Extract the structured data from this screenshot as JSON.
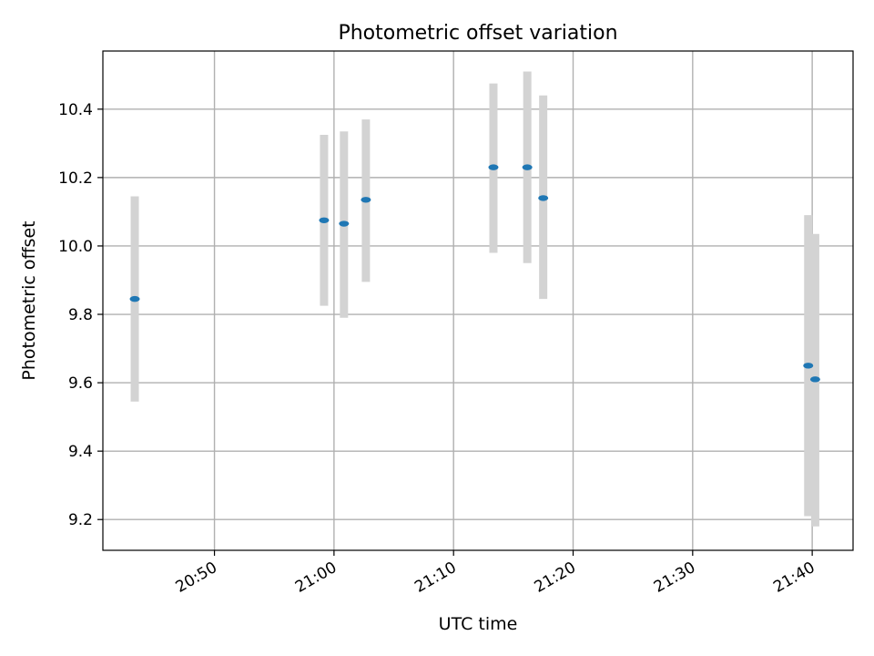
{
  "chart_data": {
    "type": "scatter",
    "title": "Photometric offset variation",
    "xlabel": "UTC time",
    "ylabel": "Photometric offset",
    "x_unit": "UTC clock time (HH:MM)",
    "xlim": [
      "20:40:40",
      "21:43:25"
    ],
    "ylim": [
      9.11,
      10.57
    ],
    "grid": true,
    "x_ticks": [
      "20:50",
      "21:00",
      "21:10",
      "21:20",
      "21:30",
      "21:40"
    ],
    "y_ticks": [
      9.2,
      9.4,
      9.6,
      9.8,
      10.0,
      10.2,
      10.4
    ],
    "point_color": "#1f77b4",
    "errorbar_color": "#d3d3d3",
    "points": [
      {
        "x": "20:43:20",
        "y": 9.845,
        "yerr_low": 9.545,
        "yerr_high": 10.145
      },
      {
        "x": "20:59:10",
        "y": 10.075,
        "yerr_low": 9.825,
        "yerr_high": 10.325
      },
      {
        "x": "21:00:50",
        "y": 10.065,
        "yerr_low": 9.79,
        "yerr_high": 10.335
      },
      {
        "x": "21:02:40",
        "y": 10.135,
        "yerr_low": 9.895,
        "yerr_high": 10.37
      },
      {
        "x": "21:13:20",
        "y": 10.23,
        "yerr_low": 9.98,
        "yerr_high": 10.475
      },
      {
        "x": "21:16:10",
        "y": 10.23,
        "yerr_low": 9.95,
        "yerr_high": 10.51
      },
      {
        "x": "21:17:30",
        "y": 10.14,
        "yerr_low": 9.845,
        "yerr_high": 10.44
      },
      {
        "x": "21:39:40",
        "y": 9.65,
        "yerr_low": 9.21,
        "yerr_high": 10.09
      },
      {
        "x": "21:40:15",
        "y": 9.61,
        "yerr_low": 9.18,
        "yerr_high": 10.035
      }
    ]
  }
}
